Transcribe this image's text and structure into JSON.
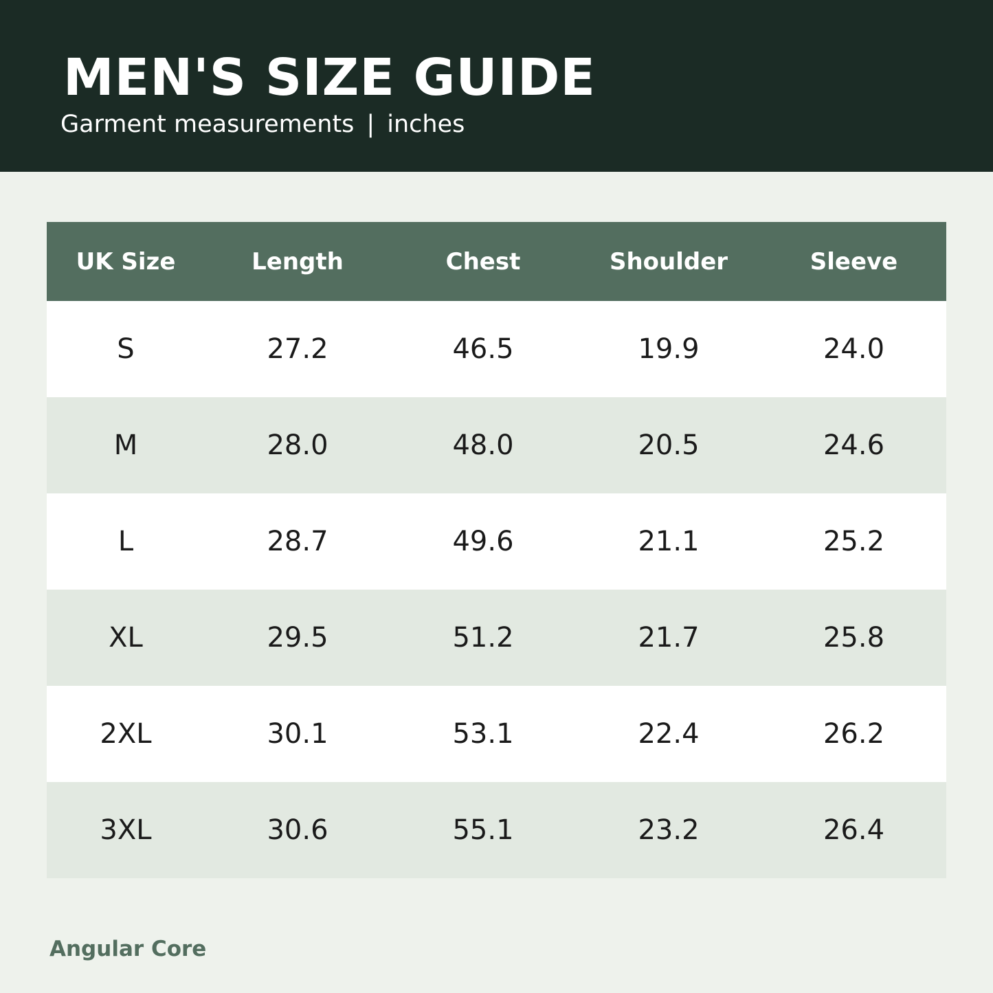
{
  "header": {
    "title": "MEN'S SIZE GUIDE",
    "subtitle_left": "Garment measurements",
    "subtitle_separator": "|",
    "subtitle_right": "inches",
    "background_color": "#1b2b25"
  },
  "table": {
    "header_color": "#536e5f",
    "row_colors": [
      "#ffffff",
      "#e2e9e1"
    ],
    "columns": [
      "UK Size",
      "Length",
      "Chest",
      "Shoulder",
      "Sleeve"
    ],
    "rows": [
      [
        "S",
        "27.2",
        "46.5",
        "19.9",
        "24.0"
      ],
      [
        "M",
        "28.0",
        "48.0",
        "20.5",
        "24.6"
      ],
      [
        "L",
        "28.7",
        "49.6",
        "21.1",
        "25.2"
      ],
      [
        "XL",
        "29.5",
        "51.2",
        "21.7",
        "25.8"
      ],
      [
        "2XL",
        "30.1",
        "53.1",
        "22.4",
        "26.2"
      ],
      [
        "3XL",
        "30.6",
        "55.1",
        "23.2",
        "26.4"
      ]
    ]
  },
  "footer": {
    "brand": "Angular Core"
  }
}
